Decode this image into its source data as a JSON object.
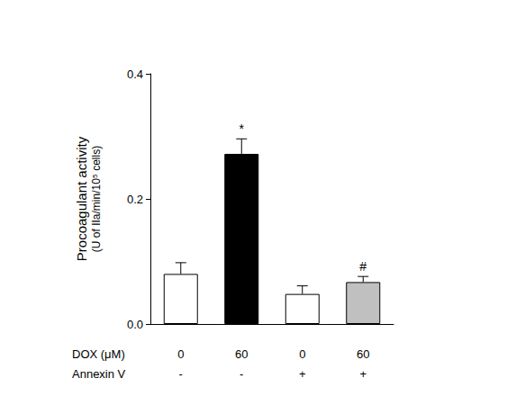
{
  "chart_data": {
    "type": "bar",
    "ylabel": "Procoagulant activity",
    "ylabel_units": "(U of IIa/min/10⁵ cells)",
    "x_rows": [
      {
        "label": "DOX (μM)",
        "values": [
          "0",
          "60",
          "0",
          "60"
        ]
      },
      {
        "label": "Annexin V",
        "values": [
          "-",
          "-",
          "+",
          "+"
        ]
      }
    ],
    "values": [
      0.08,
      0.272,
      0.048,
      0.067
    ],
    "errors": [
      0.018,
      0.024,
      0.013,
      0.009
    ],
    "colors": [
      "#ffffff",
      "#000000",
      "#ffffff",
      "#c0c0c0"
    ],
    "significance": [
      null,
      "*",
      null,
      "#"
    ],
    "ylim": [
      0,
      0.4
    ],
    "yticks": [
      {
        "value": 0,
        "label": "0.0"
      },
      0.2,
      0.4
    ],
    "grid": false
  }
}
